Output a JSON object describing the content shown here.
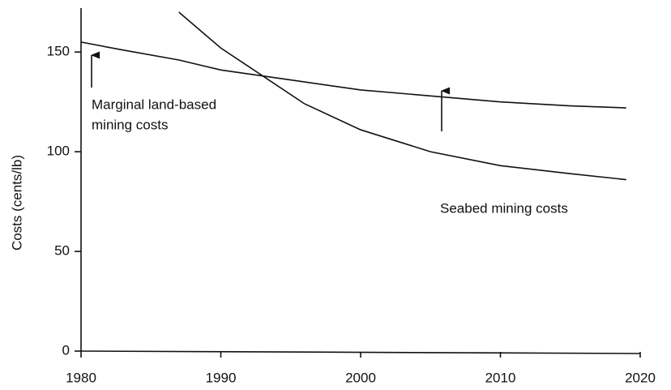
{
  "chart_data": {
    "type": "line",
    "y_label": "Costs (cents/lb)",
    "x": [
      1980,
      1983,
      1987,
      1990,
      1993,
      1996,
      2000,
      2005,
      2010,
      2015,
      2019
    ],
    "series": [
      {
        "name": "Marginal land-based mining costs",
        "color": "#111111",
        "values": [
          155,
          151,
          146,
          141,
          138,
          135,
          131,
          128,
          125,
          123,
          122
        ]
      },
      {
        "name": "Seabed mining costs",
        "color": "#111111",
        "values": [
          null,
          null,
          170,
          152,
          138,
          124,
          111,
          100,
          93,
          89,
          86
        ]
      }
    ],
    "annotations": [
      {
        "text": [
          "Marginal land-based",
          "mining costs"
        ]
      },
      {
        "text": [
          "Seabed mining costs"
        ]
      }
    ],
    "xlim": [
      1980,
      2020
    ],
    "xticks": [
      1980,
      1990,
      2000,
      2010,
      2020
    ],
    "ylim": [
      0,
      170
    ],
    "yticks": [
      0,
      50,
      100,
      150
    ],
    "grid": false
  }
}
